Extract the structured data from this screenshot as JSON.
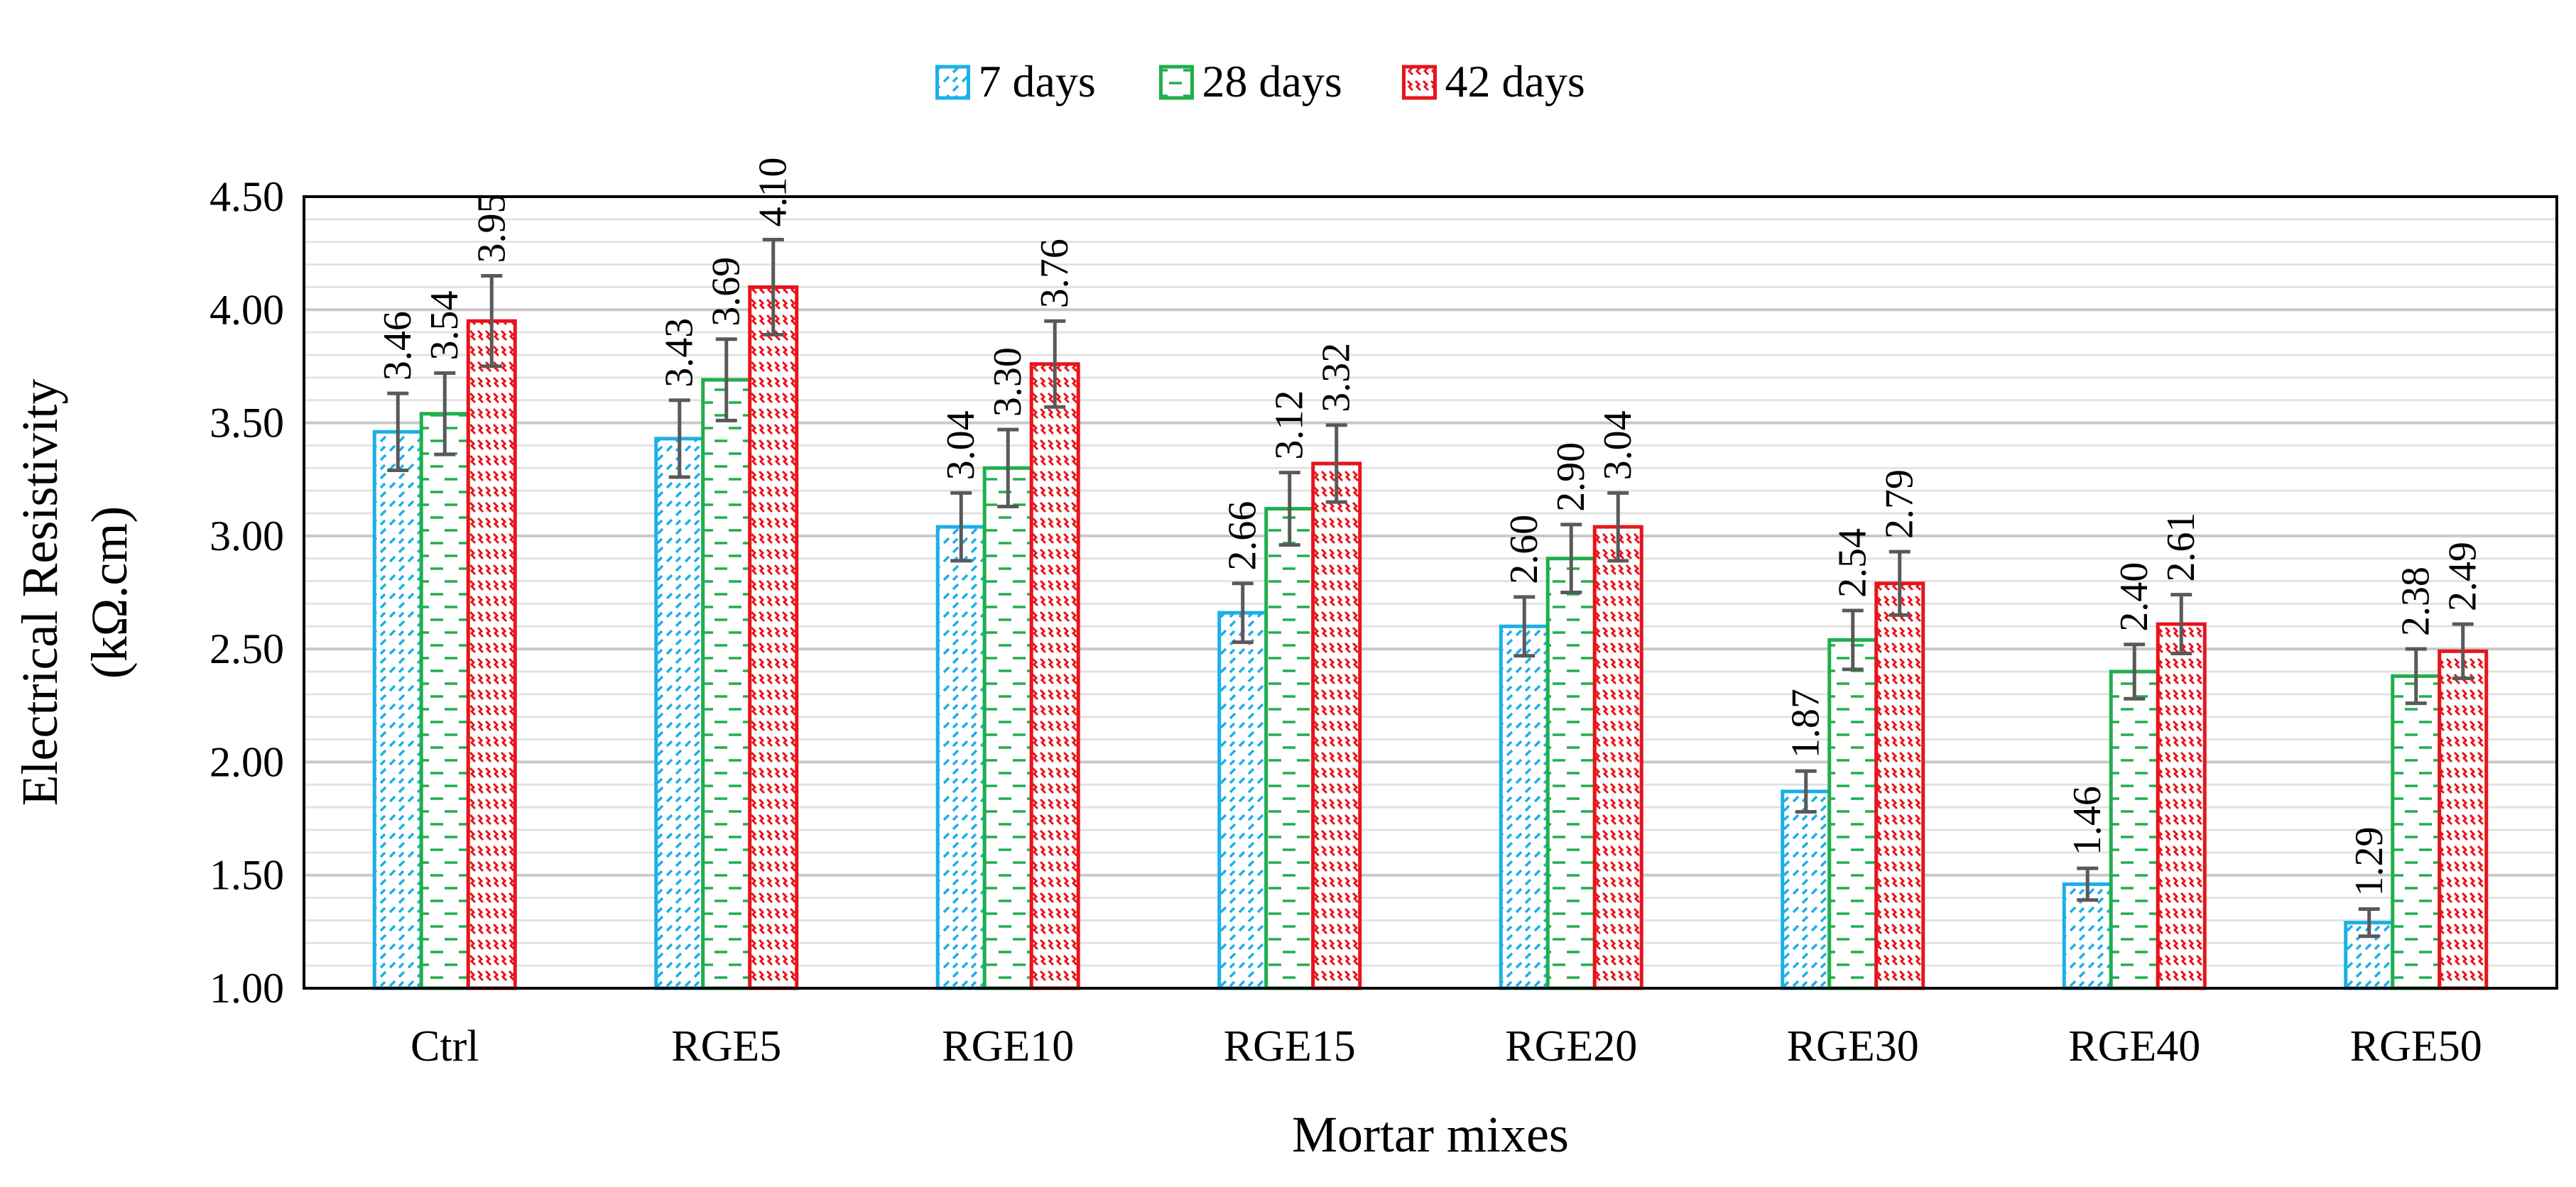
{
  "chart_data": {
    "type": "bar",
    "title": "",
    "xlabel": "Mortar mixes",
    "ylabel_line1": "Electrical Resistivity",
    "ylabel_line2": "(kΩ.cm)",
    "ylim": [
      1.0,
      4.5
    ],
    "yticks": [
      1.0,
      1.5,
      2.0,
      2.5,
      3.0,
      3.5,
      4.0,
      4.5
    ],
    "ytick_labels": [
      "1.00",
      "1.50",
      "2.00",
      "2.50",
      "3.00",
      "3.50",
      "4.00",
      "4.50"
    ],
    "minor_grid_step": 0.1,
    "legend_position": "top-center",
    "categories": [
      "Ctrl",
      "RGE5",
      "RGE10",
      "RGE15",
      "RGE20",
      "RGE30",
      "RGE40",
      "RGE50"
    ],
    "series": [
      {
        "name": "7 days",
        "color": "#1AB0E8",
        "pattern": "diagonal-dashes",
        "values": [
          3.46,
          3.43,
          3.04,
          2.66,
          2.6,
          1.87,
          1.46,
          1.29
        ],
        "labels": [
          "3.46",
          "3.43",
          "3.04",
          "2.66",
          "2.60",
          "1.87",
          "1.46",
          "1.29"
        ],
        "errors": [
          0.17,
          0.17,
          0.15,
          0.13,
          0.13,
          0.09,
          0.07,
          0.06
        ]
      },
      {
        "name": "28 days",
        "color": "#1FAF4B",
        "pattern": "horizontal-dashes",
        "values": [
          3.54,
          3.69,
          3.3,
          3.12,
          2.9,
          2.54,
          2.4,
          2.38
        ],
        "labels": [
          "3.54",
          "3.69",
          "3.30",
          "3.12",
          "2.90",
          "2.54",
          "2.40",
          "2.38"
        ],
        "errors": [
          0.18,
          0.18,
          0.17,
          0.16,
          0.15,
          0.13,
          0.12,
          0.12
        ]
      },
      {
        "name": "42 days",
        "color": "#E8141C",
        "pattern": "zigzag",
        "values": [
          3.95,
          4.1,
          3.76,
          3.32,
          3.04,
          2.79,
          2.61,
          2.49
        ],
        "labels": [
          "3.95",
          "4.10",
          "3.76",
          "3.32",
          "3.04",
          "2.79",
          "2.61",
          "2.49"
        ],
        "errors": [
          0.2,
          0.21,
          0.19,
          0.17,
          0.15,
          0.14,
          0.13,
          0.12
        ]
      }
    ]
  }
}
